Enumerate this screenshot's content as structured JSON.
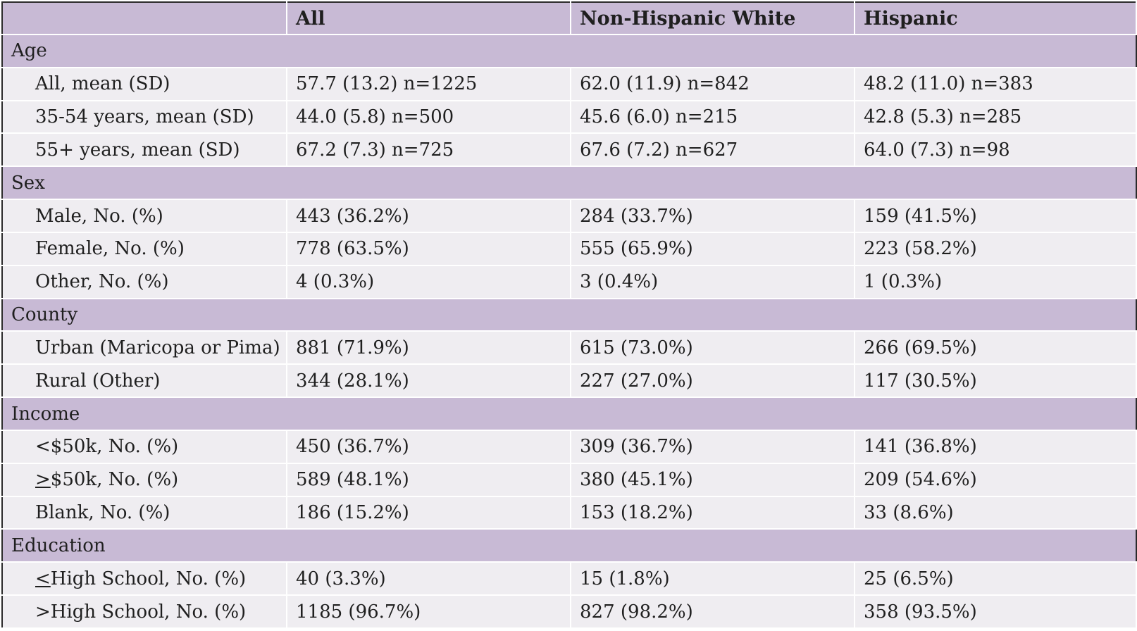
{
  "headers": [
    "",
    "All",
    "Non-Hispanic White",
    "Hispanic"
  ],
  "groups": [
    {
      "title": "Age",
      "rows": [
        {
          "label": "All, mean (SD)",
          "all": "57.7 (13.2) n=1225",
          "nhw": "62.0 (11.9) n=842",
          "hisp": "48.2 (11.0) n=383"
        },
        {
          "label": "35-54 years, mean (SD)",
          "all": "44.0 (5.8) n=500",
          "nhw": "45.6 (6.0) n=215",
          "hisp": "42.8 (5.3) n=285"
        },
        {
          "label": "55+ years, mean (SD)",
          "all": "67.2 (7.3) n=725",
          "nhw": "67.6 (7.2) n=627",
          "hisp": "64.0 (7.3) n=98"
        }
      ]
    },
    {
      "title": "Sex",
      "rows": [
        {
          "label": "Male, No. (%)",
          "all": "443 (36.2%)",
          "nhw": "284 (33.7%)",
          "hisp": "159 (41.5%)"
        },
        {
          "label": "Female, No. (%)",
          "all": "778 (63.5%)",
          "nhw": "555 (65.9%)",
          "hisp": "223 (58.2%)"
        },
        {
          "label": "Other, No. (%)",
          "all": "4 (0.3%)",
          "nhw": "3 (0.4%)",
          "hisp": "1 (0.3%)"
        }
      ]
    },
    {
      "title": "County",
      "rows": [
        {
          "label": "Urban (Maricopa or Pima)",
          "all": "881 (71.9%)",
          "nhw": "615 (73.0%)",
          "hisp": "266 (69.5%)"
        },
        {
          "label": "Rural (Other)",
          "all": "344 (28.1%)",
          "nhw": "227 (27.0%)",
          "hisp": "117 (30.5%)"
        }
      ]
    },
    {
      "title": "Income",
      "rows": [
        {
          "label": "<$50k, No. (%)",
          "all": "450 (36.7%)",
          "nhw": "309 (36.7%)",
          "hisp": "141 (36.8%)"
        },
        {
          "label_prefix": ">",
          "label_rest": "$50k, No. (%)",
          "all": "589 (48.1%)",
          "nhw": "380 (45.1%)",
          "hisp": "209 (54.6%)"
        },
        {
          "label": "Blank, No. (%)",
          "all": "186 (15.2%)",
          "nhw": "153 (18.2%)",
          "hisp": "33 (8.6%)"
        }
      ]
    },
    {
      "title": "Education",
      "rows": [
        {
          "label_prefix": "<",
          "label_rest": "High School, No. (%)",
          "all": "40 (3.3%)",
          "nhw": "15 (1.8%)",
          "hisp": "25 (6.5%)"
        },
        {
          "label": ">High School, No. (%)",
          "all": "1185 (96.7%)",
          "nhw": "827 (98.2%)",
          "hisp": "358 (93.5%)"
        }
      ]
    }
  ]
}
